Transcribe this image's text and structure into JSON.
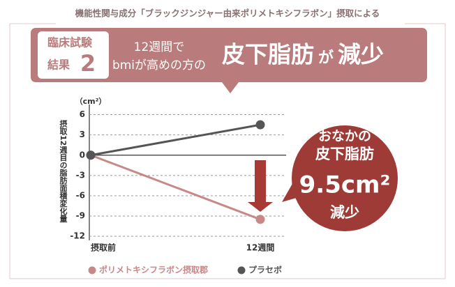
{
  "header": "機能性関与成分「ブラックジンジャー由来ポリメトキシフラボン」摂取による",
  "banner": {
    "badge_line1": "臨床試験",
    "badge_line2": "結果",
    "badge_number": "2",
    "line1": "12週間で",
    "line2": "bmiが高めの方の",
    "headline": "皮下脂肪",
    "particle": "が",
    "verb": "減少"
  },
  "callout": {
    "line1": "おなかの",
    "line2": "皮下脂肪",
    "amount": "9.5cm²",
    "verb": "減少"
  },
  "chart_data": {
    "type": "line",
    "y_unit": "（cm²）",
    "y_label": "摂取12週目の脂肪面積変化量",
    "categories": [
      "摂取前",
      "12週間"
    ],
    "series": [
      {
        "name": "ポリメトキシフラボン摂取郡",
        "color": "#c98888",
        "values": [
          0,
          -9.5
        ]
      },
      {
        "name": "プラセボ",
        "color": "#555555",
        "values": [
          0,
          4.5
        ]
      }
    ],
    "ylim": [
      -12.6,
      7.5
    ],
    "yticks": [
      6,
      3,
      0,
      -3,
      -6,
      -9,
      -12
    ],
    "grid": true
  }
}
